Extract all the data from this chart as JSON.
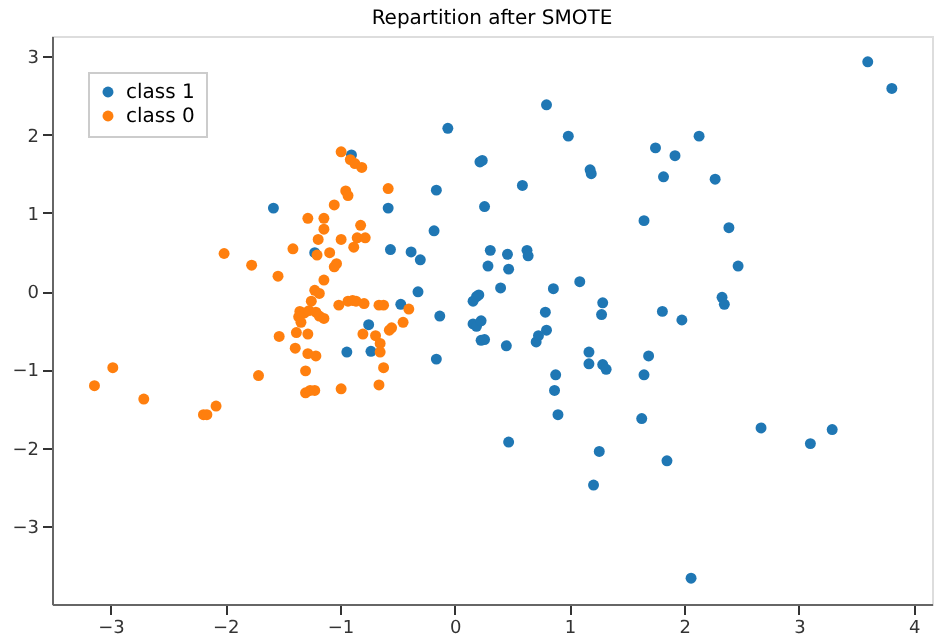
{
  "chart_data": {
    "type": "scatter",
    "title": "Repartition after SMOTE",
    "xlim": [
      -3.51,
      4.16
    ],
    "ylim": [
      -4.0,
      3.26
    ],
    "xticks": [
      -3,
      -2,
      -1,
      0,
      1,
      2,
      3,
      4
    ],
    "yticks": [
      -3,
      -2,
      -1,
      0,
      1,
      2,
      3
    ],
    "grid": false,
    "legend": "top left",
    "marker": "circle",
    "series": [
      {
        "name": "class 1",
        "color": "#1f77b4",
        "x": [
          -0.9,
          -1.58,
          -1.22,
          -0.94,
          -0.75,
          -0.73,
          -0.58,
          -0.56,
          -0.38,
          -0.3,
          -0.47,
          -0.32,
          -0.16,
          -0.18,
          -0.13,
          -0.16,
          -0.06,
          0.22,
          0.24,
          0.26,
          0.31,
          0.29,
          0.46,
          0.47,
          0.4,
          0.16,
          0.19,
          0.21,
          0.16,
          0.19,
          0.23,
          0.23,
          0.26,
          0.45,
          0.59,
          0.63,
          0.64,
          0.8,
          0.99,
          0.79,
          0.8,
          0.71,
          0.73,
          0.86,
          0.88,
          0.87,
          0.9,
          0.47,
          1.09,
          1.18,
          1.19,
          1.17,
          1.17,
          1.29,
          1.28,
          1.29,
          1.32,
          1.26,
          1.21,
          1.65,
          1.63,
          1.65,
          1.69,
          1.75,
          1.82,
          1.81,
          1.92,
          1.98,
          1.85,
          2.13,
          2.27,
          2.39,
          2.47,
          2.33,
          2.35,
          2.06,
          2.67,
          3.1,
          3.29,
          3.6,
          3.81
        ],
        "values": [
          1.74,
          1.06,
          0.49,
          -0.78,
          -0.43,
          -0.77,
          1.06,
          0.53,
          0.5,
          0.4,
          -0.17,
          -0.01,
          1.29,
          0.77,
          -0.32,
          -0.87,
          2.08,
          1.65,
          1.67,
          1.08,
          0.52,
          0.32,
          0.47,
          0.28,
          0.04,
          -0.13,
          -0.07,
          -0.05,
          -0.42,
          -0.45,
          -0.38,
          -0.63,
          -0.62,
          -0.7,
          1.35,
          0.52,
          0.45,
          2.38,
          1.98,
          -0.27,
          -0.5,
          -0.65,
          -0.57,
          0.03,
          -1.07,
          -1.27,
          -1.58,
          -1.93,
          0.12,
          1.55,
          1.5,
          -0.78,
          -0.93,
          -0.15,
          -0.3,
          -0.94,
          -1.0,
          -2.05,
          -2.48,
          0.9,
          -1.63,
          -1.07,
          -0.83,
          1.83,
          1.46,
          -0.26,
          1.73,
          -0.37,
          -2.17,
          1.98,
          1.43,
          0.81,
          0.32,
          -0.08,
          -0.17,
          -3.67,
          -1.75,
          -1.95,
          -1.77,
          2.93,
          2.59
        ]
      },
      {
        "name": "class 0",
        "color": "#ff7f0e",
        "x": [
          -0.99,
          -0.91,
          -0.87,
          -0.81,
          -0.58,
          -0.95,
          -0.93,
          -1.05,
          -1.28,
          -1.14,
          -1.14,
          -0.82,
          -1.19,
          -0.99,
          -0.85,
          -0.78,
          -1.41,
          -1.09,
          -0.88,
          -1.2,
          -1.03,
          -1.05,
          -2.01,
          -1.77,
          -1.54,
          -1.14,
          -1.22,
          -1.18,
          -1.25,
          -1.01,
          -0.93,
          -0.89,
          -0.86,
          -0.79,
          -0.66,
          -0.62,
          -1.35,
          -1.31,
          -1.27,
          -1.21,
          -1.18,
          -1.14,
          -1.36,
          -1.34,
          -0.4,
          -0.45,
          -0.55,
          -0.57,
          -1.38,
          -1.28,
          -1.53,
          -0.8,
          -0.69,
          -0.65,
          -1.39,
          -1.28,
          -1.21,
          -0.65,
          -0.62,
          -1.3,
          -1.71,
          -0.99,
          -1.3,
          -1.26,
          -1.22,
          -0.66,
          -2.98,
          -3.14,
          -2.71,
          -2.19,
          -2.16,
          -2.08
        ],
        "values": [
          1.78,
          1.68,
          1.63,
          1.58,
          1.31,
          1.28,
          1.22,
          1.1,
          0.93,
          0.93,
          0.79,
          0.84,
          0.66,
          0.66,
          0.68,
          0.68,
          0.54,
          0.49,
          0.56,
          0.46,
          0.35,
          0.31,
          0.48,
          0.33,
          0.19,
          0.14,
          0.01,
          -0.03,
          -0.13,
          -0.18,
          -0.13,
          -0.12,
          -0.13,
          -0.16,
          -0.18,
          -0.18,
          -0.26,
          -0.28,
          -0.25,
          -0.27,
          -0.32,
          -0.35,
          -0.33,
          -0.4,
          -0.23,
          -0.4,
          -0.47,
          -0.5,
          -0.53,
          -0.55,
          -0.58,
          -0.55,
          -0.57,
          -0.67,
          -0.73,
          -0.8,
          -0.83,
          -0.78,
          -0.98,
          -1.02,
          -1.08,
          -1.25,
          -1.3,
          -1.27,
          -1.27,
          -1.2,
          -0.98,
          -1.21,
          -1.38,
          -1.58,
          -1.58,
          -1.47
        ]
      }
    ]
  }
}
